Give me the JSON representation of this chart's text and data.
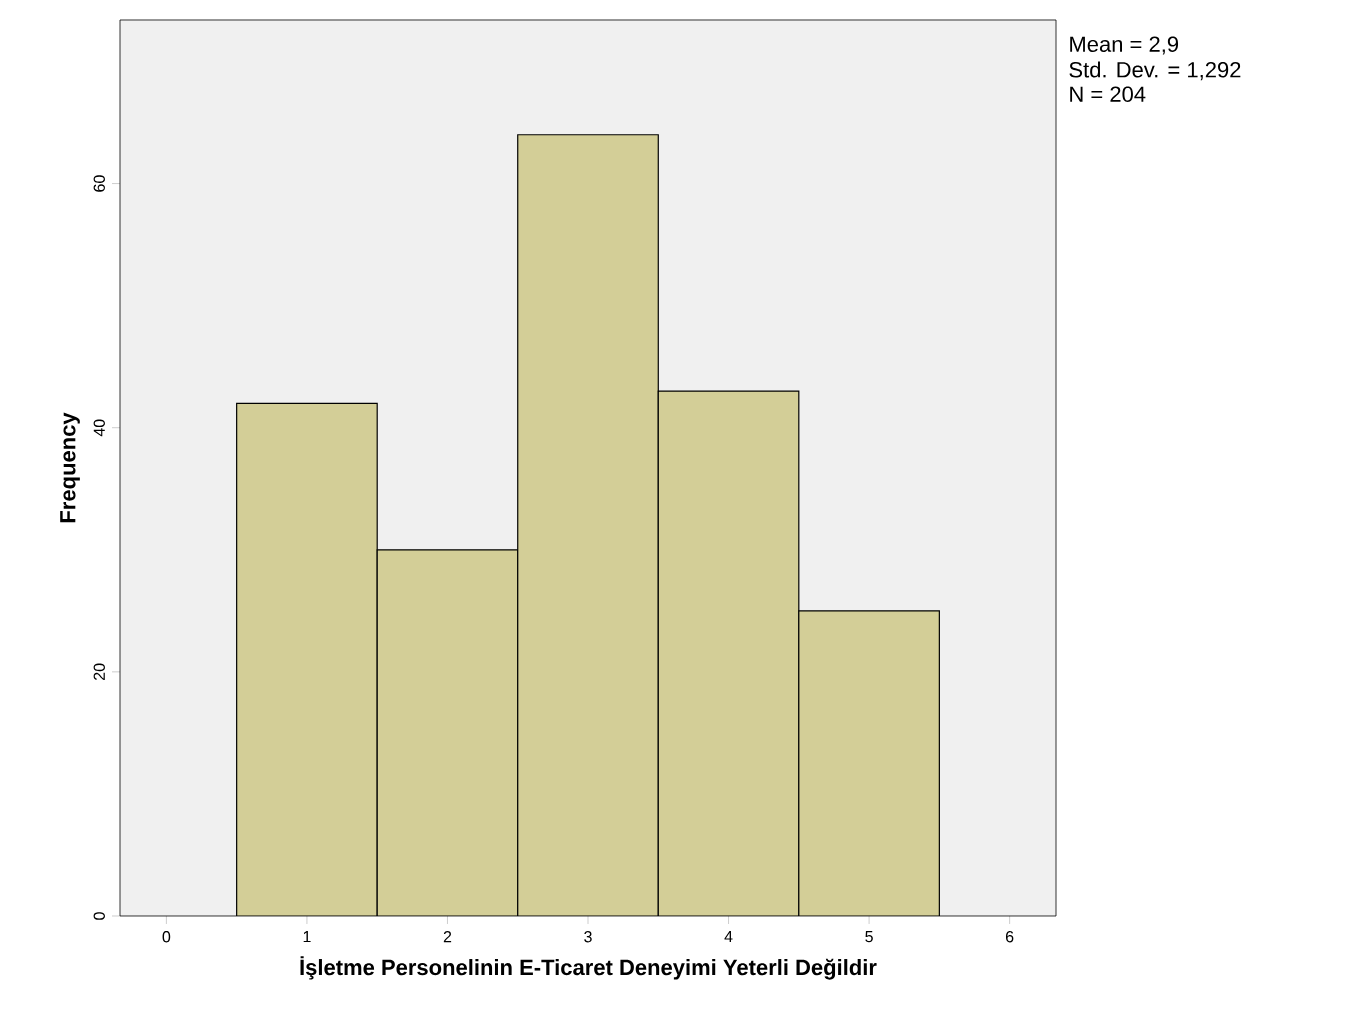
{
  "chart_data": {
    "type": "histogram",
    "xlabel": "İşletme Personelinin E-Ticaret Deneyimi Yeterli Değildir",
    "ylabel": "Frequency",
    "bins": [
      0.5,
      1.5,
      2.5,
      3.5,
      4.5,
      5.5
    ],
    "values": [
      42,
      30,
      64,
      43,
      25
    ],
    "color": "#d3ce97",
    "xlim": [
      -0.33,
      6.33
    ],
    "ylim": [
      0,
      73.4
    ],
    "xticks": [
      0,
      1,
      2,
      3,
      4,
      5,
      6
    ],
    "yticks": [
      0,
      20,
      40,
      60
    ],
    "annotations": [
      "Mean = 2,9",
      "Std. Dev. = 1,292",
      "N = 204"
    ]
  }
}
